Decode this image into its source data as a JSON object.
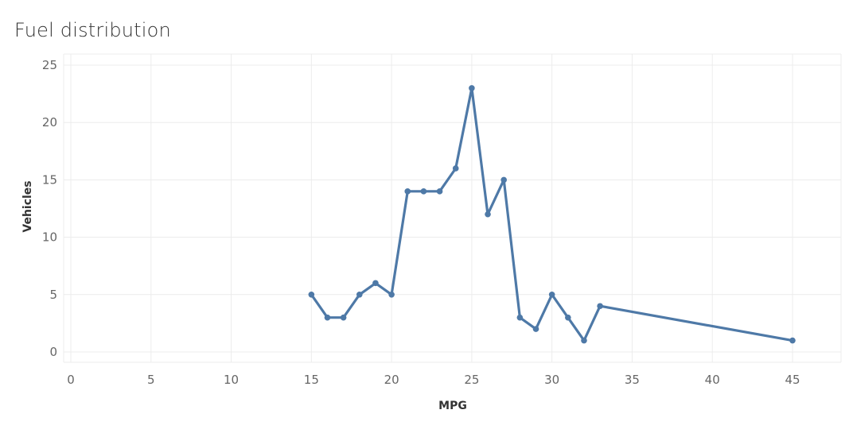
{
  "chart_data": {
    "type": "line",
    "title": "Fuel distribution",
    "xlabel": "MPG",
    "ylabel": "Vehicles",
    "xlim": [
      0,
      48
    ],
    "ylim": [
      -0.8,
      25
    ],
    "x_ticks": [
      0,
      5,
      10,
      15,
      20,
      25,
      30,
      35,
      40,
      45
    ],
    "y_ticks": [
      0,
      5,
      10,
      15,
      20,
      25
    ],
    "grid": true,
    "colors": {
      "line": "#4e79a7",
      "grid": "#ececec",
      "tick_text": "#666666"
    },
    "series": [
      {
        "x": [
          15,
          16,
          17,
          18,
          19,
          20,
          21,
          22,
          23,
          24,
          25,
          26,
          27,
          28,
          29,
          30,
          31,
          32,
          33,
          45
        ],
        "y": [
          5,
          3,
          3,
          5,
          6,
          5,
          14,
          14,
          14,
          16,
          23,
          12,
          15,
          3,
          2,
          5,
          3,
          1,
          4,
          1
        ]
      }
    ]
  }
}
